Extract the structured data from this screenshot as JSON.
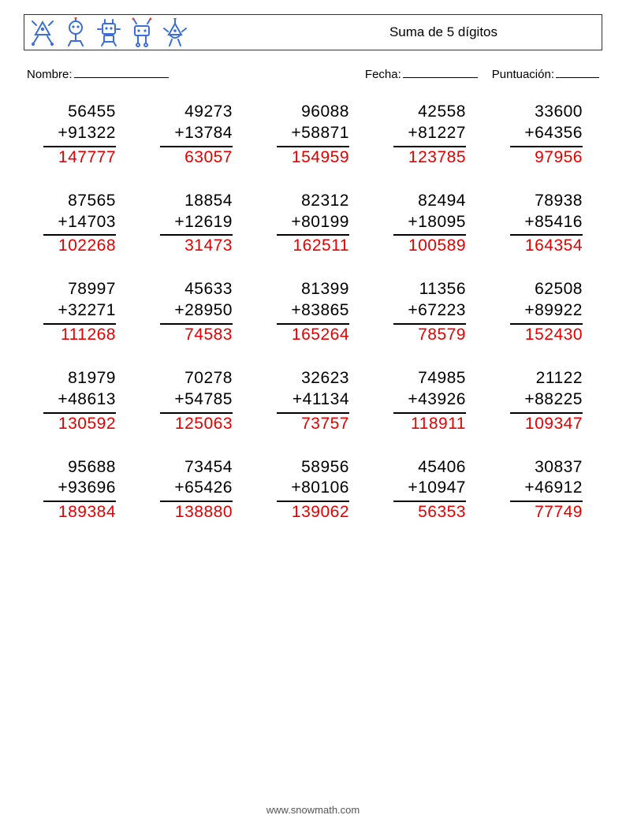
{
  "header": {
    "title": "Suma de 5 dígitos",
    "icon_color": "#3b6fd6",
    "icon_accent": "#d64545"
  },
  "meta": {
    "name_label": "Nombre:",
    "date_label": "Fecha:",
    "score_label": "Puntuación:"
  },
  "style": {
    "answer_color": "#e60000",
    "text_color": "#000000",
    "font_size_problem": 21,
    "grid_cols": 5,
    "grid_rows": 5
  },
  "problems": [
    {
      "a": "56455",
      "b": "91322",
      "ans": "147777"
    },
    {
      "a": "49273",
      "b": "13784",
      "ans": "63057"
    },
    {
      "a": "96088",
      "b": "58871",
      "ans": "154959"
    },
    {
      "a": "42558",
      "b": "81227",
      "ans": "123785"
    },
    {
      "a": "33600",
      "b": "64356",
      "ans": "97956"
    },
    {
      "a": "87565",
      "b": "14703",
      "ans": "102268"
    },
    {
      "a": "18854",
      "b": "12619",
      "ans": "31473"
    },
    {
      "a": "82312",
      "b": "80199",
      "ans": "162511"
    },
    {
      "a": "82494",
      "b": "18095",
      "ans": "100589"
    },
    {
      "a": "78938",
      "b": "85416",
      "ans": "164354"
    },
    {
      "a": "78997",
      "b": "32271",
      "ans": "111268"
    },
    {
      "a": "45633",
      "b": "28950",
      "ans": "74583"
    },
    {
      "a": "81399",
      "b": "83865",
      "ans": "165264"
    },
    {
      "a": "11356",
      "b": "67223",
      "ans": "78579"
    },
    {
      "a": "62508",
      "b": "89922",
      "ans": "152430"
    },
    {
      "a": "81979",
      "b": "48613",
      "ans": "130592"
    },
    {
      "a": "70278",
      "b": "54785",
      "ans": "125063"
    },
    {
      "a": "32623",
      "b": "41134",
      "ans": "73757"
    },
    {
      "a": "74985",
      "b": "43926",
      "ans": "118911"
    },
    {
      "a": "21122",
      "b": "88225",
      "ans": "109347"
    },
    {
      "a": "95688",
      "b": "93696",
      "ans": "189384"
    },
    {
      "a": "73454",
      "b": "65426",
      "ans": "138880"
    },
    {
      "a": "58956",
      "b": "80106",
      "ans": "139062"
    },
    {
      "a": "45406",
      "b": "10947",
      "ans": "56353"
    },
    {
      "a": "30837",
      "b": "46912",
      "ans": "77749"
    }
  ],
  "footer": {
    "url": "www.snowmath.com"
  }
}
